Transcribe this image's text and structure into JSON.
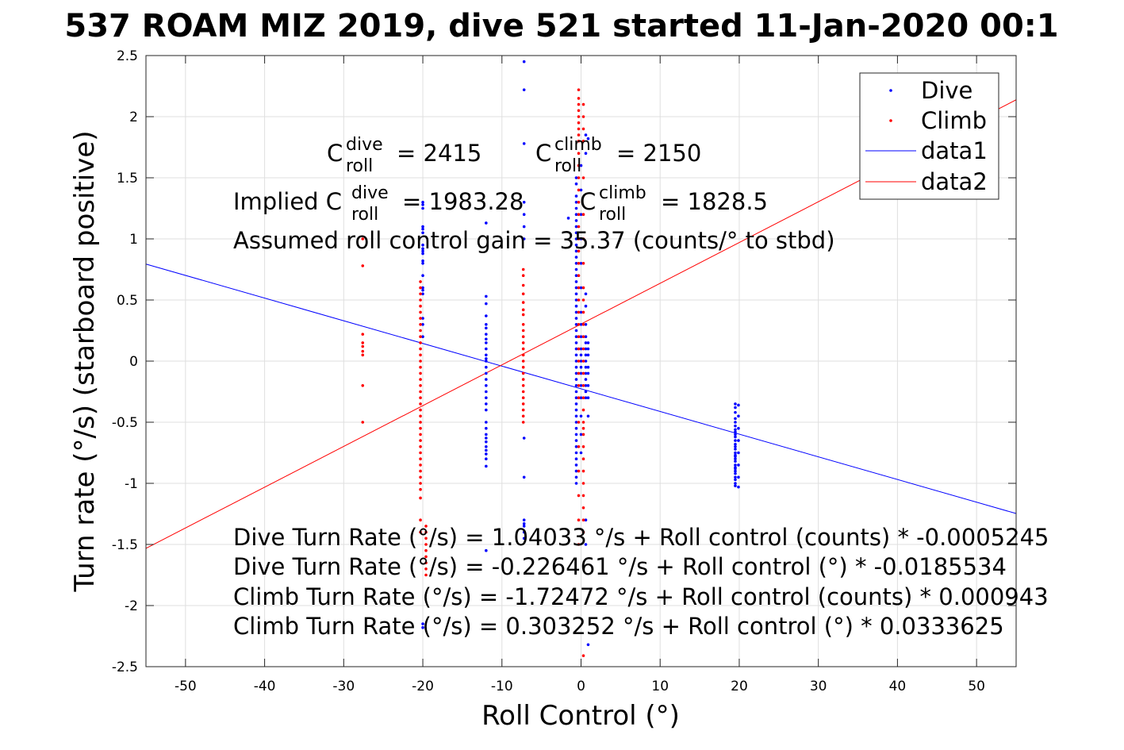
{
  "chart_data": {
    "type": "scatter",
    "title": "537 ROAM MIZ 2019, dive 521 started 11-Jan-2020 00:1",
    "xlabel": "Roll Control (°)",
    "ylabel": "Turn rate (°/s) (starboard positive)",
    "xlim": [
      -55,
      55
    ],
    "ylim": [
      -2.5,
      2.5
    ],
    "xticks": [
      "-50",
      "-40",
      "-30",
      "-20",
      "-10",
      "0",
      "10",
      "20",
      "30",
      "40",
      "50"
    ],
    "yticks": [
      "-2.5",
      "-2",
      "-1.5",
      "-1",
      "-0.5",
      "0",
      "0.5",
      "1",
      "1.5",
      "2",
      "2.5"
    ],
    "grid": true,
    "legend_position": "top-right",
    "series": [
      {
        "name": "Dive",
        "style": "points",
        "color": "#0000ff",
        "groups": [
          {
            "x": -20,
            "y": [
              1.3,
              1.28,
              1.25,
              1.1,
              1.08,
              1.05,
              0.95,
              0.92,
              0.9,
              0.88,
              0.82,
              0.8,
              0.7,
              0.6,
              0.58,
              0.55,
              0.35,
              0.3,
              0.2,
              -2.15,
              -2.18
            ]
          },
          {
            "x": -12,
            "y": [
              1.13,
              0.53,
              0.47,
              0.37,
              0.3,
              0.27,
              0.22,
              0.18,
              0.15,
              0.1,
              0.05,
              0.02,
              0.0,
              -0.05,
              -0.1,
              -0.15,
              -0.2,
              -0.25,
              -0.3,
              -0.35,
              -0.4,
              -0.5,
              -0.55,
              -0.6,
              -0.63,
              -0.66,
              -0.7,
              -0.73,
              -0.76,
              -0.8,
              -0.86,
              -1.55
            ]
          },
          {
            "x": -7.2,
            "y": [
              2.45,
              2.22,
              1.78,
              1.3,
              1.2,
              1.1,
              1.0,
              -0.63,
              -0.95,
              -1.3,
              -1.33,
              -1.35,
              -1.4,
              -1.45
            ]
          },
          {
            "x": -0.6,
            "y": [
              1.5,
              1.45,
              1.35,
              1.3,
              1.25,
              1.2,
              1.15,
              1.1,
              1.05,
              1.0,
              0.95,
              0.9,
              0.85,
              0.8,
              0.75,
              0.7,
              0.65,
              0.6,
              0.55,
              0.5,
              0.45,
              0.4,
              0.35,
              0.3,
              0.25,
              0.2,
              0.15,
              0.1,
              0.05,
              0.0,
              -0.05,
              -0.1,
              -0.15,
              -0.2,
              -0.25,
              -0.3,
              -0.35,
              -0.4,
              -0.45,
              -0.5,
              -0.55,
              -0.6,
              -0.65,
              -0.7,
              -0.75,
              -0.8,
              -0.85,
              -0.9,
              -0.95,
              -1.0
            ]
          },
          {
            "x": 0.0,
            "y": [
              1.6,
              1.4,
              1.2,
              1.0,
              0.8,
              0.6,
              0.4,
              0.3,
              0.2,
              0.1,
              0.05,
              0.0,
              -0.05,
              -0.1,
              -0.2,
              -0.3,
              -0.45,
              -0.6,
              -0.75
            ]
          },
          {
            "x": 0.6,
            "y": [
              1.85,
              1.7,
              0.55,
              0.45,
              0.3,
              0.2,
              0.15,
              0.1,
              0.05,
              0.0,
              -0.05,
              -0.1,
              -0.15,
              -0.2,
              -0.25,
              -0.3,
              -1.3,
              -1.5
            ]
          },
          {
            "x": 0.9,
            "y": [
              1.82,
              0.15,
              0.1,
              0.05,
              -0.05,
              -0.1,
              -0.2,
              -0.3,
              -0.45,
              -2.32
            ]
          },
          {
            "x": -1.6,
            "y": [
              1.17
            ]
          },
          {
            "x": 19.5,
            "y": [
              -0.35,
              -0.38,
              -0.42,
              -0.47,
              -0.5,
              -0.53,
              -0.56,
              -0.58,
              -0.6,
              -0.62,
              -0.65,
              -0.68,
              -0.7,
              -0.72,
              -0.75,
              -0.77,
              -0.78,
              -0.8,
              -0.82,
              -0.85,
              -0.87,
              -0.88,
              -0.9,
              -0.92,
              -0.95,
              -0.97,
              -1.0,
              -1.02
            ]
          },
          {
            "x": 19.9,
            "y": [
              -0.36,
              -0.45,
              -0.55,
              -0.65,
              -0.75,
              -0.85,
              -0.95,
              -1.03
            ]
          }
        ]
      },
      {
        "name": "Climb",
        "style": "points",
        "color": "#ff0000",
        "groups": [
          {
            "x": -27.6,
            "y": [
              1.0,
              0.78,
              0.22,
              0.15,
              0.12,
              0.08,
              0.05,
              -0.2,
              -0.5
            ]
          },
          {
            "x": -20.3,
            "y": [
              0.65,
              0.6,
              0.55,
              0.5,
              0.45,
              0.4,
              0.35,
              0.3,
              0.25,
              0.2,
              0.15,
              0.1,
              0.05,
              0.0,
              -0.05,
              -0.1,
              -0.15,
              -0.2,
              -0.25,
              -0.3,
              -0.35,
              -0.4,
              -0.45,
              -0.5,
              -0.55,
              -0.6,
              -0.65,
              -0.7,
              -0.75,
              -0.8,
              -0.85,
              -0.9,
              -0.95,
              -1.0,
              -1.05,
              -1.12,
              -1.3,
              -1.4
            ]
          },
          {
            "x": -19.6,
            "y": [
              -1.35,
              -1.4,
              -1.45,
              -1.5,
              -1.55,
              -1.6,
              -1.65,
              -1.7,
              -1.75
            ]
          },
          {
            "x": -7.3,
            "y": [
              0.75,
              0.7,
              0.62,
              0.55,
              0.48,
              0.42,
              0.38,
              0.3,
              0.25,
              0.2,
              0.15,
              0.1,
              0.05,
              0.0,
              -0.05,
              -0.1,
              -0.15,
              -0.2,
              -0.25,
              -0.3,
              -0.35,
              -0.4,
              -0.45,
              -0.5
            ]
          },
          {
            "x": -0.3,
            "y": [
              2.22,
              2.15,
              2.1,
              2.05,
              2.0,
              1.95,
              1.9,
              1.85,
              1.8,
              1.7,
              1.6,
              1.5,
              1.4,
              1.3,
              1.2,
              1.1,
              1.0,
              0.9,
              0.8,
              0.7,
              0.6,
              0.5,
              0.4,
              0.3,
              0.2,
              0.1,
              0.0,
              -0.1,
              -0.2,
              -0.3,
              -0.5,
              -0.7,
              -0.9,
              -1.1,
              -1.3,
              -1.5
            ]
          },
          {
            "x": 0.3,
            "y": [
              2.1,
              2.0,
              1.9,
              1.8,
              1.5,
              1.2,
              1.0,
              0.8,
              0.6,
              0.5,
              0.4,
              0.3,
              0.2,
              0.1,
              0.0,
              -0.1,
              -0.2,
              -0.3,
              -0.4,
              -0.5,
              -0.55,
              -0.6,
              -0.7,
              -0.8,
              -0.9,
              -1.0,
              -1.1,
              -1.2,
              -1.3,
              -1.4,
              -2.41
            ]
          }
        ]
      },
      {
        "name": "data1",
        "style": "line",
        "color": "#0000ff",
        "x": [
          -55,
          55
        ],
        "y": [
          0.794,
          -1.247
        ]
      },
      {
        "name": "data2",
        "style": "line",
        "color": "#ff0000",
        "x": [
          -55,
          55
        ],
        "y": [
          -1.532,
          2.138
        ]
      }
    ],
    "annotations": {
      "c_roll_dive": {
        "base": "C",
        "sup": "dive",
        "sub": "roll",
        "value": "= 2415"
      },
      "c_roll_climb": {
        "base": "C",
        "sup": "climb",
        "sub": "roll",
        "value": "= 2150"
      },
      "implied_prefix": "Implied C",
      "implied_dive": {
        "sup": "dive",
        "sub": "roll",
        "value": "= 1983.28"
      },
      "implied_climb": {
        "base": "C",
        "sup": "climb",
        "sub": "roll",
        "value": "= 1828.5"
      },
      "gain": "Assumed roll control gain = 35.37 (counts/° to stbd)",
      "eq1": "Dive Turn Rate (°/s) = 1.04033 °/s + Roll control (counts) * -0.0005245",
      "eq2": "Dive Turn Rate (°/s) = -0.226461 °/s + Roll control (°) * -0.0185534",
      "eq3": "Climb Turn Rate (°/s) = -1.72472 °/s + Roll control (counts) * 0.000943",
      "eq4": "Climb Turn Rate (°/s) = 0.303252 °/s + Roll control (°) * 0.0333625"
    }
  }
}
